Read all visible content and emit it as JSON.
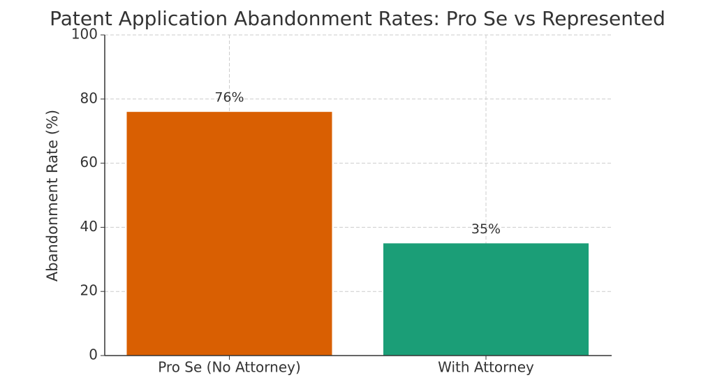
{
  "chart_data": {
    "type": "bar",
    "title": "Patent Application Abandonment Rates: Pro Se vs Represented",
    "y_label": "Abandonment Rate (%)",
    "categories": [
      "Pro Se (No Attorney)",
      "With Attorney"
    ],
    "values": [
      76,
      35
    ],
    "value_labels": [
      "76%",
      "35%"
    ],
    "colors": [
      "#d95f02",
      "#1b9e77"
    ],
    "ylim": [
      0,
      100
    ],
    "yticks": [
      0,
      20,
      40,
      60,
      80,
      100
    ],
    "grid": true
  }
}
